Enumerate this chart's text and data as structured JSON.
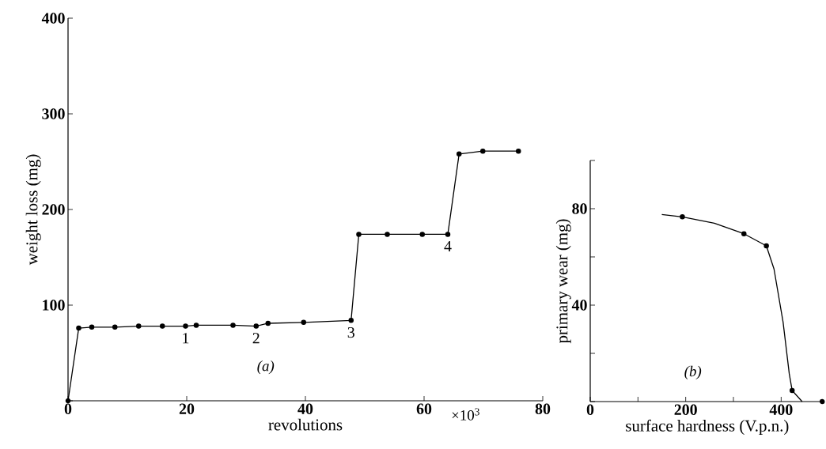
{
  "chart_data": [
    {
      "type": "line",
      "xlabel": "revolutions",
      "ylabel": "weight loss (mg)",
      "color": "#000000",
      "marker": "circle",
      "x": [
        0,
        1.8,
        4.0,
        7.9,
        11.9,
        15.9,
        19.8,
        21.6,
        27.8,
        31.7,
        33.7,
        39.7,
        47.7,
        49.0,
        53.8,
        59.7,
        64.0,
        65.9,
        69.9,
        75.9
      ],
      "values": [
        0,
        76,
        77,
        77,
        78,
        78,
        78,
        79,
        79,
        78,
        81,
        82,
        84,
        174,
        174,
        174,
        174,
        258,
        261,
        261
      ],
      "xlim": [
        0,
        80
      ],
      "ylim": [
        0,
        400
      ],
      "xticks": [
        0,
        20,
        40,
        60,
        80
      ],
      "yticks": [
        {
          "value": 0,
          "label": null
        },
        100,
        200,
        300,
        400
      ],
      "annotations": [
        {
          "text": "1",
          "x": 19.8,
          "y": 78
        },
        {
          "text": "2",
          "x": 31.7,
          "y": 78
        },
        {
          "text": "3",
          "x": 47.7,
          "y": 84
        },
        {
          "text": "4",
          "x": 64.0,
          "y": 174
        },
        "*(a)*",
        "×10$^{3}$"
      ]
    },
    {
      "type": "line",
      "xlabel": "surface hardness (V.p.n.)",
      "ylabel": "primary wear (mg)",
      "series": [
        {
          "type": "line",
          "marker": "none",
          "color": "#000000",
          "x": [
            150,
            193,
            260,
            322,
            369,
            385,
            404,
            417,
            423,
            444
          ],
          "values": [
            77.6,
            76.6,
            74,
            69.6,
            64.6,
            55,
            33,
            11.5,
            4.6,
            0
          ]
        },
        {
          "type": "scatter",
          "marker": "circle",
          "color": "#000000",
          "x": [
            193,
            322,
            369,
            423,
            486
          ],
          "values": [
            76.6,
            69.6,
            64.6,
            4.6,
            0
          ]
        }
      ],
      "xlim": [
        0,
        490
      ],
      "ylim": [
        0,
        100
      ],
      "xticks": [
        0,
        {
          "value": 100,
          "label": null
        },
        200,
        {
          "value": 300,
          "label": null
        },
        400
      ],
      "yticks": [
        {
          "value": 0,
          "label": null
        },
        {
          "value": 20,
          "label": null
        },
        40,
        {
          "value": 60,
          "label": null
        },
        80,
        {
          "value": 100,
          "label": null
        }
      ],
      "annotations": [
        "*(b)*"
      ]
    }
  ]
}
